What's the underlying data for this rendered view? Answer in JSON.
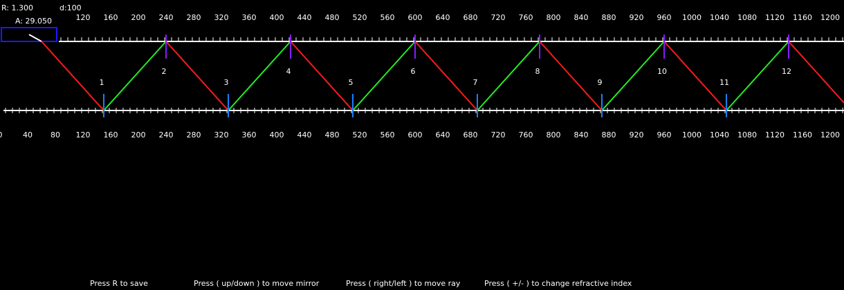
{
  "status": {
    "refractive_index": "R: 1.300",
    "distance": "d:100",
    "angle": "A: 29.050"
  },
  "top_ruler": {
    "labels": [
      120,
      160,
      200,
      240,
      280,
      320,
      360,
      400,
      440,
      480,
      520,
      560,
      600,
      640,
      680,
      720,
      760,
      800,
      840,
      880,
      920,
      960,
      1000,
      1040,
      1080,
      1120,
      1160,
      1200
    ]
  },
  "bottom_ruler": {
    "labels": [
      0,
      40,
      80,
      120,
      160,
      200,
      240,
      280,
      320,
      360,
      400,
      440,
      480,
      520,
      560,
      600,
      640,
      680,
      720,
      760,
      800,
      840,
      880,
      920,
      960,
      1000,
      1040,
      1080,
      1120,
      1160,
      1200
    ]
  },
  "reflections": [
    "1",
    "2",
    "3",
    "4",
    "5",
    "6",
    "7",
    "8",
    "9",
    "10",
    "11",
    "12"
  ],
  "footer": [
    "Press R to save",
    "Press ( up/down ) to move mirror",
    "Press ( right/left ) to move ray",
    "Press ( +/- ) to change refractive index"
  ]
}
